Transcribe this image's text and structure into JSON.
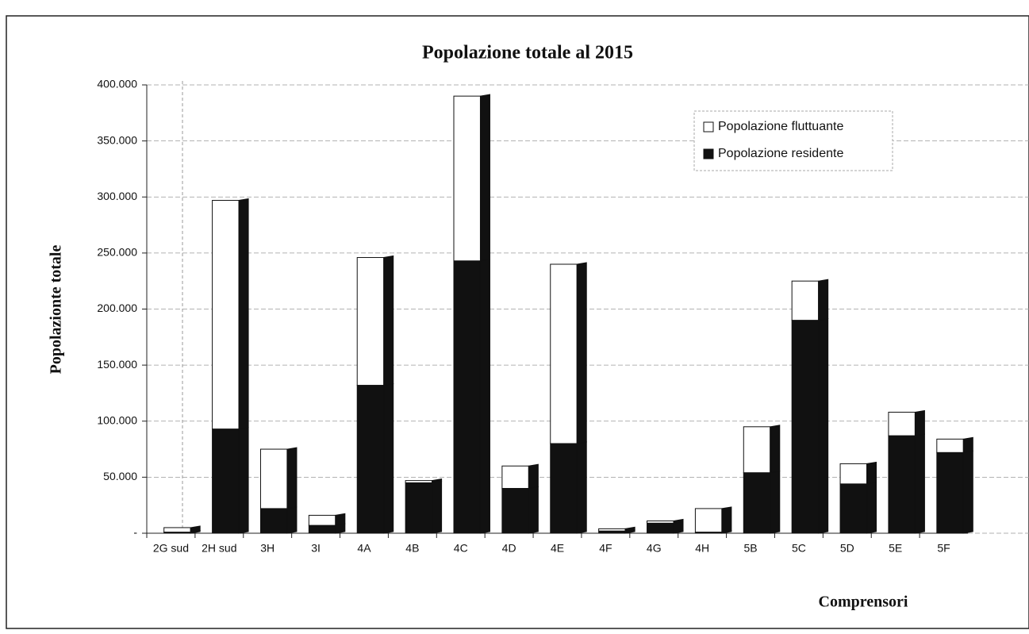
{
  "chart_data": {
    "type": "bar",
    "stacked": true,
    "title": "Popolazione totale al 2015",
    "y_label": "Popolaziontе totale",
    "x_label": "Comprensori",
    "categories": [
      "2G sud",
      "2H sud",
      "3H",
      "3I",
      "4A",
      "4B",
      "4C",
      "4D",
      "4E",
      "4F",
      "4G",
      "4H",
      "5B",
      "5C",
      "5D",
      "5E",
      "5F"
    ],
    "series": [
      {
        "name": "Popolazione residente",
        "color": "#111111",
        "values": [
          1000,
          93000,
          22000,
          7000,
          132000,
          45000,
          243000,
          40000,
          80000,
          2000,
          9000,
          1000,
          54000,
          190000,
          44000,
          87000,
          72000
        ]
      },
      {
        "name": "Popolazione fluttuante",
        "color": "#ffffff",
        "values": [
          4000,
          204000,
          53000,
          9000,
          114000,
          2000,
          147000,
          20000,
          160000,
          2000,
          2000,
          21000,
          41000,
          35000,
          18000,
          21000,
          12000
        ]
      }
    ],
    "ylim": [
      0,
      400000
    ],
    "yticks": [
      {
        "value": 0,
        "label": "-"
      },
      {
        "value": 50000,
        "label": "50.000"
      },
      {
        "value": 100000,
        "label": "100.000"
      },
      {
        "value": 150000,
        "label": "150.000"
      },
      {
        "value": 200000,
        "label": "200.000"
      },
      {
        "value": 250000,
        "label": "250.000"
      },
      {
        "value": 300000,
        "label": "300.000"
      },
      {
        "value": 350000,
        "label": "350.000"
      },
      {
        "value": 400000,
        "label": "400.000"
      }
    ],
    "grid": true,
    "legend": "upper right"
  }
}
